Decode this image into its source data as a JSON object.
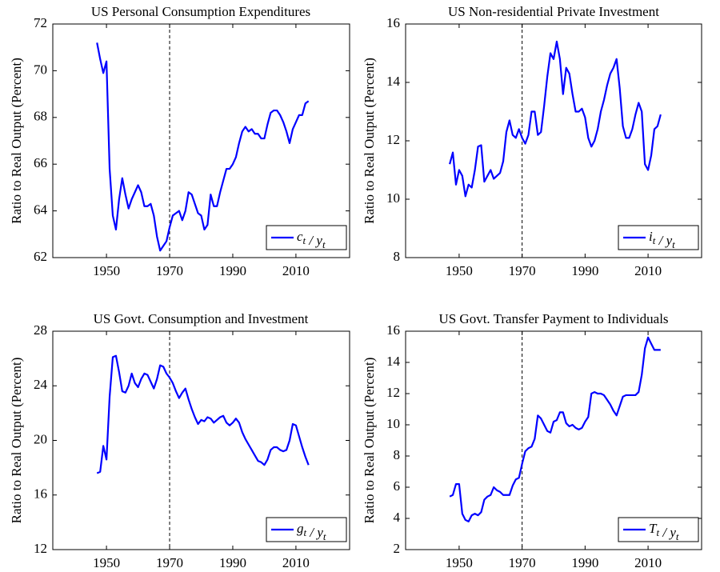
{
  "chart_data": [
    {
      "type": "line",
      "title": "US Personal Consumption Expenditures",
      "ylabel": "Ratio to Real Output (Percent)",
      "x": [
        1947,
        1948,
        1949,
        1950,
        1951,
        1952,
        1953,
        1954,
        1955,
        1956,
        1957,
        1958,
        1959,
        1960,
        1961,
        1962,
        1963,
        1964,
        1965,
        1966,
        1967,
        1968,
        1969,
        1970,
        1971,
        1972,
        1973,
        1974,
        1975,
        1976,
        1977,
        1978,
        1979,
        1980,
        1981,
        1982,
        1983,
        1984,
        1985,
        1986,
        1987,
        1988,
        1989,
        1990,
        1991,
        1992,
        1993,
        1994,
        1995,
        1996,
        1997,
        1998,
        1999,
        2000,
        2001,
        2002,
        2003,
        2004,
        2005,
        2006,
        2007,
        2008,
        2009,
        2010,
        2011,
        2012,
        2013,
        2014
      ],
      "series": [
        {
          "name": "ct / yt",
          "color": "#0000ff",
          "values": [
            71.2,
            70.5,
            69.9,
            70.4,
            65.8,
            63.8,
            63.2,
            64.5,
            65.4,
            64.7,
            64.1,
            64.5,
            64.8,
            65.1,
            64.8,
            64.2,
            64.2,
            64.3,
            63.8,
            62.9,
            62.3,
            62.5,
            62.7,
            63.3,
            63.8,
            63.9,
            64.0,
            63.6,
            64.0,
            64.8,
            64.7,
            64.3,
            63.9,
            63.8,
            63.2,
            63.4,
            64.7,
            64.2,
            64.2,
            64.8,
            65.3,
            65.8,
            65.8,
            66.0,
            66.3,
            66.9,
            67.4,
            67.6,
            67.4,
            67.5,
            67.3,
            67.3,
            67.1,
            67.1,
            67.7,
            68.2,
            68.3,
            68.3,
            68.1,
            67.8,
            67.4,
            66.9,
            67.5,
            67.8,
            68.1,
            68.1,
            68.6,
            68.7
          ]
        }
      ],
      "xlim": [
        1933,
        2027
      ],
      "xticks": [
        1950,
        1970,
        1990,
        2010
      ],
      "ylim": [
        62,
        72
      ],
      "yticks": [
        62,
        64,
        66,
        68,
        70,
        72
      ],
      "vline": 1970,
      "legend": "lower right"
    },
    {
      "type": "line",
      "title": "US Non-residential Private Investment",
      "ylabel": "Ratio to Real Output (Percent)",
      "x": [
        1947,
        1948,
        1949,
        1950,
        1951,
        1952,
        1953,
        1954,
        1955,
        1956,
        1957,
        1958,
        1959,
        1960,
        1961,
        1962,
        1963,
        1964,
        1965,
        1966,
        1967,
        1968,
        1969,
        1970,
        1971,
        1972,
        1973,
        1974,
        1975,
        1976,
        1977,
        1978,
        1979,
        1980,
        1981,
        1982,
        1983,
        1984,
        1985,
        1986,
        1987,
        1988,
        1989,
        1990,
        1991,
        1992,
        1993,
        1994,
        1995,
        1996,
        1997,
        1998,
        1999,
        2000,
        2001,
        2002,
        2003,
        2004,
        2005,
        2006,
        2007,
        2008,
        2009,
        2010,
        2011,
        2012,
        2013,
        2014
      ],
      "series": [
        {
          "name": "it / yt",
          "color": "#0000ff",
          "values": [
            11.2,
            11.6,
            10.5,
            11.0,
            10.8,
            10.1,
            10.5,
            10.4,
            11.0,
            11.8,
            11.85,
            10.6,
            10.8,
            11.0,
            10.7,
            10.8,
            10.9,
            11.3,
            12.3,
            12.7,
            12.2,
            12.1,
            12.4,
            12.1,
            11.9,
            12.2,
            13.0,
            13.0,
            12.2,
            12.3,
            13.2,
            14.2,
            15.0,
            14.8,
            15.4,
            14.8,
            13.6,
            14.5,
            14.3,
            13.6,
            13.0,
            13.0,
            13.1,
            12.8,
            12.1,
            11.8,
            12.0,
            12.4,
            13.0,
            13.4,
            13.9,
            14.3,
            14.5,
            14.8,
            13.8,
            12.5,
            12.1,
            12.1,
            12.4,
            12.9,
            13.3,
            13.0,
            11.2,
            11.0,
            11.5,
            12.4,
            12.5,
            12.9
          ]
        }
      ],
      "xlim": [
        1933,
        2027
      ],
      "xticks": [
        1950,
        1970,
        1990,
        2010
      ],
      "ylim": [
        8,
        16
      ],
      "yticks": [
        8,
        10,
        12,
        14,
        16
      ],
      "vline": 1970,
      "legend": "lower right"
    },
    {
      "type": "line",
      "title": "US Govt. Consumption and Investment",
      "ylabel": "Ratio to Real Output (Percent)",
      "x": [
        1947,
        1948,
        1949,
        1950,
        1951,
        1952,
        1953,
        1954,
        1955,
        1956,
        1957,
        1958,
        1959,
        1960,
        1961,
        1962,
        1963,
        1964,
        1965,
        1966,
        1967,
        1968,
        1969,
        1970,
        1971,
        1972,
        1973,
        1974,
        1975,
        1976,
        1977,
        1978,
        1979,
        1980,
        1981,
        1982,
        1983,
        1984,
        1985,
        1986,
        1987,
        1988,
        1989,
        1990,
        1991,
        1992,
        1993,
        1994,
        1995,
        1996,
        1997,
        1998,
        1999,
        2000,
        2001,
        2002,
        2003,
        2004,
        2005,
        2006,
        2007,
        2008,
        2009,
        2010,
        2011,
        2012,
        2013,
        2014
      ],
      "series": [
        {
          "name": "gt / yt",
          "color": "#0000ff",
          "values": [
            17.6,
            17.7,
            19.6,
            18.6,
            23.2,
            26.1,
            26.2,
            25.0,
            23.6,
            23.5,
            24.0,
            24.9,
            24.2,
            23.9,
            24.5,
            24.9,
            24.8,
            24.3,
            23.8,
            24.5,
            25.5,
            25.4,
            24.9,
            24.6,
            24.2,
            23.6,
            23.1,
            23.5,
            23.8,
            23.0,
            22.3,
            21.7,
            21.2,
            21.5,
            21.4,
            21.7,
            21.6,
            21.3,
            21.5,
            21.7,
            21.8,
            21.3,
            21.1,
            21.3,
            21.6,
            21.3,
            20.6,
            20.1,
            19.7,
            19.3,
            18.9,
            18.5,
            18.4,
            18.2,
            18.6,
            19.3,
            19.5,
            19.5,
            19.3,
            19.2,
            19.3,
            20.0,
            21.2,
            21.1,
            20.3,
            19.5,
            18.8,
            18.2
          ]
        }
      ],
      "xlim": [
        1933,
        2027
      ],
      "xticks": [
        1950,
        1970,
        1990,
        2010
      ],
      "ylim": [
        12,
        28
      ],
      "yticks": [
        12,
        16,
        20,
        24,
        28
      ],
      "vline": 1970,
      "legend": "lower right"
    },
    {
      "type": "line",
      "title": "US Govt. Transfer Payment to Individuals",
      "ylabel": "Ratio to Real Output (Percent)",
      "x": [
        1947,
        1948,
        1949,
        1950,
        1951,
        1952,
        1953,
        1954,
        1955,
        1956,
        1957,
        1958,
        1959,
        1960,
        1961,
        1962,
        1963,
        1964,
        1965,
        1966,
        1967,
        1968,
        1969,
        1970,
        1971,
        1972,
        1973,
        1974,
        1975,
        1976,
        1977,
        1978,
        1979,
        1980,
        1981,
        1982,
        1983,
        1984,
        1985,
        1986,
        1987,
        1988,
        1989,
        1990,
        1991,
        1992,
        1993,
        1994,
        1995,
        1996,
        1997,
        1998,
        1999,
        2000,
        2001,
        2002,
        2003,
        2004,
        2005,
        2006,
        2007,
        2008,
        2009,
        2010,
        2011,
        2012,
        2013,
        2014
      ],
      "series": [
        {
          "name": "Tt / yt",
          "color": "#0000ff",
          "values": [
            5.4,
            5.5,
            6.2,
            6.2,
            4.3,
            3.9,
            3.8,
            4.2,
            4.3,
            4.2,
            4.4,
            5.2,
            5.4,
            5.5,
            6.0,
            5.8,
            5.7,
            5.5,
            5.5,
            5.5,
            6.1,
            6.5,
            6.6,
            7.5,
            8.3,
            8.5,
            8.6,
            9.1,
            10.6,
            10.4,
            10.0,
            9.6,
            9.5,
            10.2,
            10.3,
            10.8,
            10.8,
            10.1,
            9.9,
            10.0,
            9.8,
            9.7,
            9.8,
            10.2,
            10.5,
            12.0,
            12.1,
            12.0,
            12.0,
            11.9,
            11.6,
            11.3,
            10.9,
            10.6,
            11.2,
            11.8,
            11.9,
            11.9,
            11.9,
            11.9,
            12.1,
            13.2,
            14.9,
            15.6,
            15.2,
            14.8,
            14.8,
            14.8
          ]
        }
      ],
      "xlim": [
        1933,
        2027
      ],
      "xticks": [
        1950,
        1970,
        1990,
        2010
      ],
      "ylim": [
        2,
        16
      ],
      "yticks": [
        2,
        4,
        6,
        8,
        10,
        12,
        14,
        16
      ],
      "vline": 1970,
      "legend": "lower right"
    }
  ]
}
